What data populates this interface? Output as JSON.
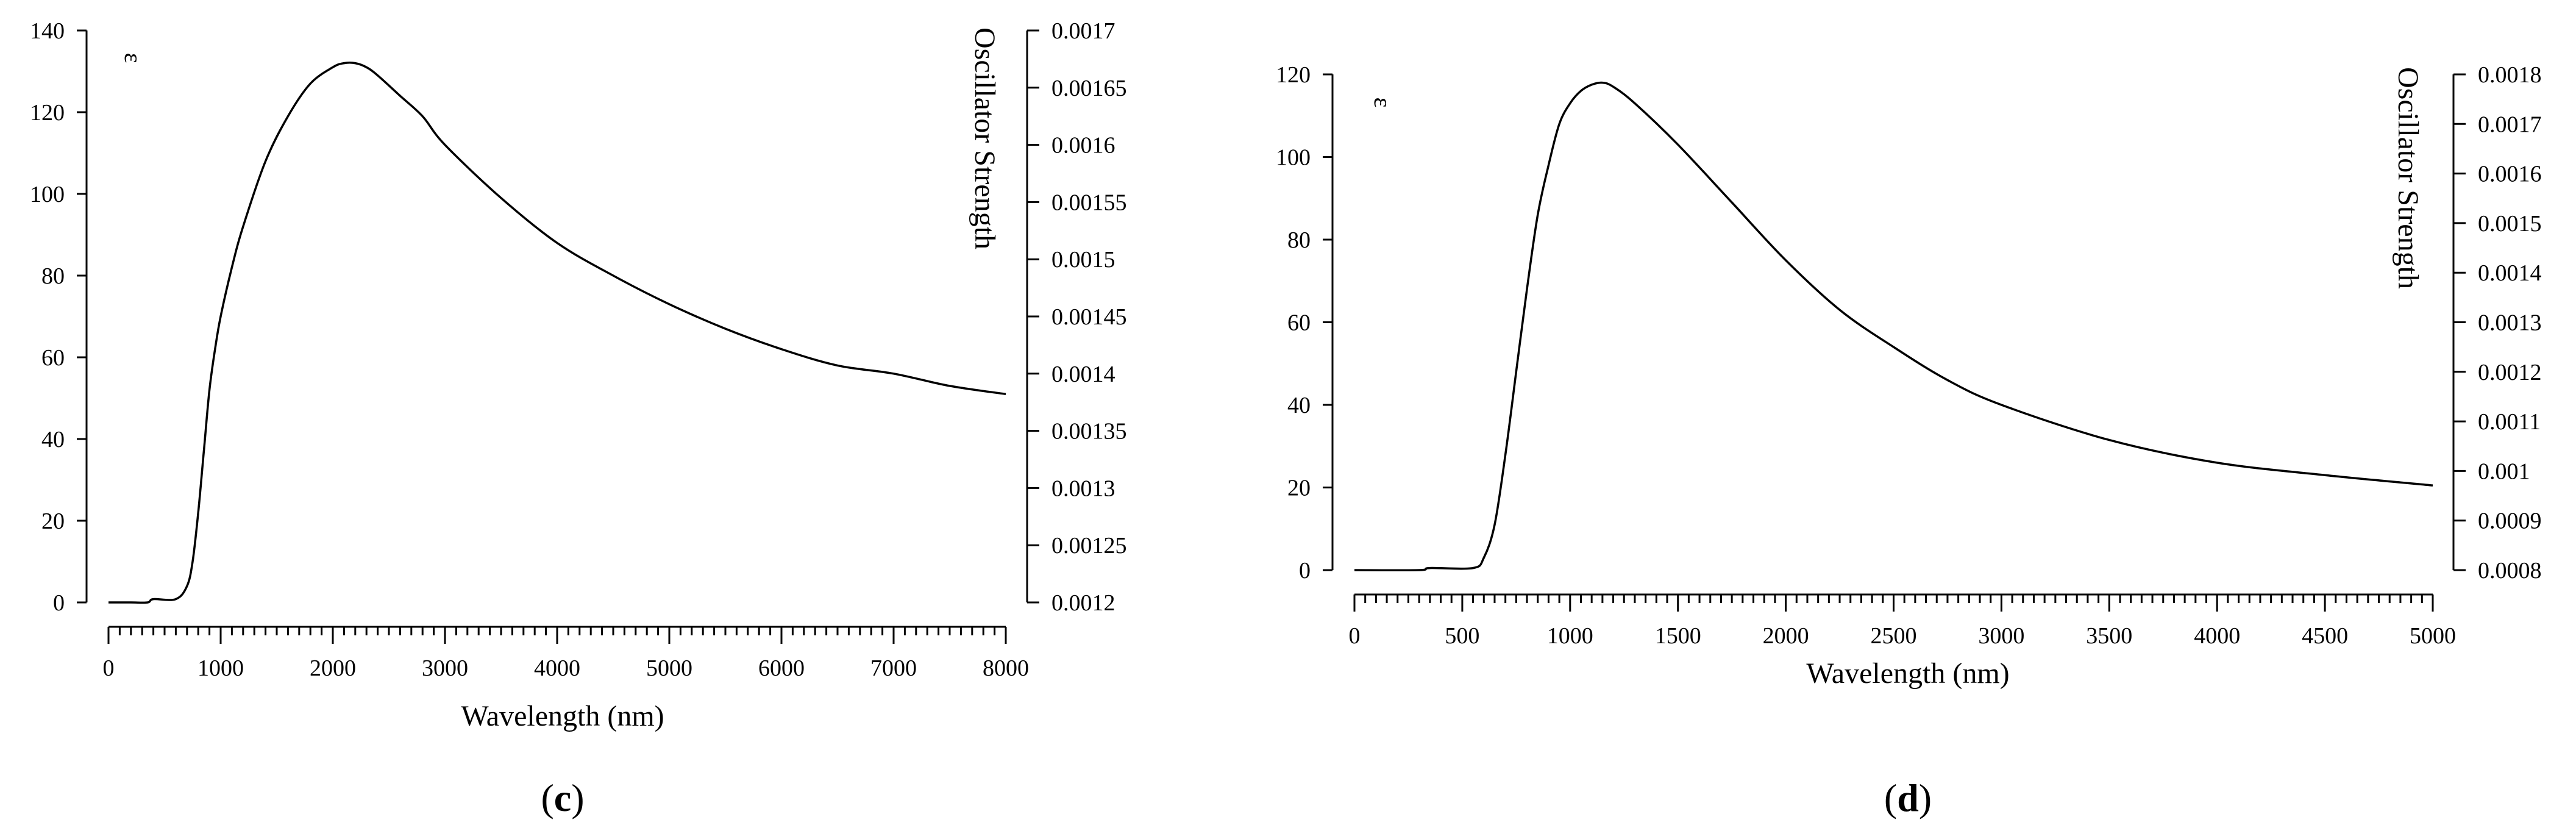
{
  "chart_data": [
    {
      "type": "line",
      "caption_letter": "c",
      "xlabel": "Wavelength (nm)",
      "ylabel": "",
      "y2label": "Oscillator Strength",
      "series_label": "ε",
      "xlim": [
        0,
        8000
      ],
      "ylim": [
        0,
        140
      ],
      "y2lim": [
        0.0012,
        0.0017
      ],
      "xticks": [
        "0",
        "1000",
        "2000",
        "3000",
        "4000",
        "5000",
        "6000",
        "7000",
        "8000"
      ],
      "yticks": [
        "0",
        "20",
        "40",
        "60",
        "80",
        "100",
        "120",
        "140"
      ],
      "y2ticks": [
        "0.0012",
        "0.00125",
        "0.0013",
        "0.00135",
        "0.0014",
        "0.00145",
        "0.0015",
        "0.00155",
        "0.0016",
        "0.00165",
        "0.0017"
      ],
      "x": [
        0,
        200,
        350,
        400,
        600,
        700,
        750,
        800,
        850,
        900,
        950,
        1000,
        1100,
        1200,
        1400,
        1600,
        1800,
        2000,
        2100,
        2200,
        2300,
        2400,
        2600,
        2800,
        3000,
        3500,
        4000,
        4500,
        5000,
        5500,
        6000,
        6500,
        7000,
        7500,
        8000
      ],
      "values": [
        0,
        0,
        0,
        0.8,
        0.8,
        4,
        10,
        22,
        37,
        52,
        62,
        70,
        82,
        92,
        108,
        119,
        127,
        131,
        132,
        132,
        131,
        129,
        124,
        119,
        112,
        99,
        88,
        80,
        73,
        67,
        62,
        58,
        56,
        53,
        51
      ],
      "grid": false,
      "legend": "none"
    },
    {
      "type": "line",
      "caption_letter": "d",
      "xlabel": "Wavelength (nm)",
      "ylabel": "",
      "y2label": "Oscillator Strength",
      "series_label": "ε",
      "xlim": [
        0,
        5000
      ],
      "ylim": [
        0,
        120
      ],
      "y2lim": [
        0.0008,
        0.0018
      ],
      "xticks": [
        "0",
        "500",
        "1000",
        "1500",
        "2000",
        "2500",
        "3000",
        "3500",
        "4000",
        "4500",
        "5000"
      ],
      "yticks": [
        "0",
        "20",
        "40",
        "60",
        "80",
        "100",
        "120"
      ],
      "y2ticks": [
        "0.0008",
        "0.0009",
        "0.001",
        "0.0011",
        "0.0012",
        "0.0013",
        "0.0014",
        "0.0015",
        "0.0016",
        "0.0017",
        "0.0018"
      ],
      "x": [
        0,
        300,
        350,
        550,
        600,
        650,
        700,
        750,
        800,
        850,
        900,
        950,
        1000,
        1050,
        1100,
        1150,
        1200,
        1300,
        1500,
        1750,
        2000,
        2250,
        2500,
        2750,
        3000,
        3500,
        4000,
        4500,
        5000
      ],
      "values": [
        0,
        0,
        0.5,
        0.5,
        3,
        11,
        28,
        48,
        68,
        86,
        98,
        108,
        113,
        116,
        117.5,
        118,
        117,
        113,
        103,
        89,
        75,
        63,
        54,
        46,
        40,
        31.5,
        26,
        23,
        20.5
      ],
      "grid": false,
      "legend": "none"
    }
  ]
}
